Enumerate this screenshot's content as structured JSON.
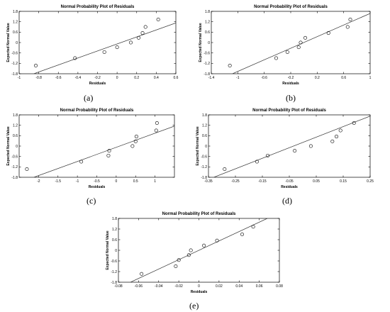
{
  "figure": {
    "captions": [
      "(a)",
      "(b)",
      "(c)",
      "(d)",
      "(e)"
    ]
  },
  "chart_data": [
    {
      "type": "scatter",
      "title": "Normal Probability Plot of Residuals",
      "xlabel": "Residuals",
      "ylabel": "Expected Normal Value",
      "xlim": [
        -1.0,
        0.6
      ],
      "ylim": [
        -1.8,
        1.8
      ],
      "xticks": [
        -1.0,
        -0.8,
        -0.6,
        -0.4,
        -0.2,
        0.0,
        0.2,
        0.4,
        0.6
      ],
      "xtick_labels": [
        "-1",
        "-0.8",
        "-0.6",
        "-0.4",
        "-0.2",
        "0",
        "0.2",
        "0.4",
        "0.6"
      ],
      "yticks": [
        -1.8,
        -1.2,
        -0.6,
        0.0,
        0.6,
        1.2,
        1.8
      ],
      "ytick_labels": [
        "-1.8",
        "-1.2",
        "-0.6",
        "0",
        "0.6",
        "1.2",
        "1.8"
      ],
      "grid": false,
      "points": [
        {
          "x": -0.83,
          "y": -1.33
        },
        {
          "x": -0.43,
          "y": -0.9
        },
        {
          "x": -0.13,
          "y": -0.55
        },
        {
          "x": 0.0,
          "y": -0.27
        },
        {
          "x": 0.14,
          "y": 0.0
        },
        {
          "x": 0.22,
          "y": 0.27
        },
        {
          "x": 0.26,
          "y": 0.55
        },
        {
          "x": 0.29,
          "y": 0.9
        },
        {
          "x": 0.42,
          "y": 1.33
        }
      ],
      "fit_line": [
        {
          "x": -0.85,
          "y": -1.8
        },
        {
          "x": 0.6,
          "y": 1.13
        }
      ]
    },
    {
      "type": "scatter",
      "title": "Normal Probability Plot of Residuals",
      "xlabel": "Residuals",
      "ylabel": "Expected Normal Value",
      "xlim": [
        -1.4,
        1.0
      ],
      "ylim": [
        -1.8,
        1.8
      ],
      "xticks": [
        -1.4,
        -1.0,
        -0.6,
        -0.2,
        0.2,
        0.6,
        1.0
      ],
      "xtick_labels": [
        "-1.4",
        "-1",
        "-0.6",
        "-0.2",
        "0.2",
        "0.6",
        "1"
      ],
      "yticks": [
        -1.8,
        -1.2,
        -0.6,
        0.0,
        0.6,
        1.2,
        1.8
      ],
      "ytick_labels": [
        "-1.8",
        "-1.2",
        "-0.6",
        "0",
        "0.6",
        "1.2",
        "1.8"
      ],
      "grid": false,
      "points": [
        {
          "x": -1.12,
          "y": -1.33
        },
        {
          "x": -0.42,
          "y": -0.9
        },
        {
          "x": -0.25,
          "y": -0.55
        },
        {
          "x": -0.08,
          "y": -0.27
        },
        {
          "x": -0.05,
          "y": 0.0
        },
        {
          "x": 0.02,
          "y": 0.27
        },
        {
          "x": 0.37,
          "y": 0.55
        },
        {
          "x": 0.66,
          "y": 0.9
        },
        {
          "x": 0.7,
          "y": 1.33
        }
      ],
      "fit_line": [
        {
          "x": -1.08,
          "y": -1.8
        },
        {
          "x": 1.0,
          "y": 1.68
        }
      ]
    },
    {
      "type": "scatter",
      "title": "Normal Probability Plot of Residuals",
      "xlabel": "Residuals",
      "ylabel": "Expected Normal Value",
      "xlim": [
        -2.5,
        1.5
      ],
      "ylim": [
        -1.8,
        1.8
      ],
      "xticks": [
        -2.0,
        -1.5,
        -1.0,
        -0.5,
        0.0,
        0.5,
        1.0
      ],
      "xtick_labels": [
        "-2",
        "-1.5",
        "-1",
        "-0.5",
        "0",
        "0.5",
        "1"
      ],
      "yticks": [
        -1.8,
        -1.2,
        -0.6,
        0.0,
        0.6,
        1.2,
        1.8
      ],
      "ytick_labels": [
        "-1.8",
        "-1.2",
        "-0.6",
        "0",
        "0.6",
        "1.2",
        "1.8"
      ],
      "grid": false,
      "points": [
        {
          "x": -2.3,
          "y": -1.33
        },
        {
          "x": -0.9,
          "y": -0.9
        },
        {
          "x": -0.2,
          "y": -0.55
        },
        {
          "x": -0.18,
          "y": -0.27
        },
        {
          "x": 0.42,
          "y": 0.0
        },
        {
          "x": 0.5,
          "y": 0.27
        },
        {
          "x": 0.52,
          "y": 0.55
        },
        {
          "x": 1.03,
          "y": 0.9
        },
        {
          "x": 1.05,
          "y": 1.33
        }
      ],
      "fit_line": [
        {
          "x": -2.12,
          "y": -1.8
        },
        {
          "x": 1.5,
          "y": 1.15
        }
      ]
    },
    {
      "type": "scatter",
      "title": "Normal Probability Plot of Residuals",
      "xlabel": "Residuals",
      "ylabel": "Expected Normal Value",
      "xlim": [
        -0.35,
        0.25
      ],
      "ylim": [
        -1.8,
        1.8
      ],
      "xticks": [
        -0.35,
        -0.25,
        -0.15,
        -0.05,
        0.05,
        0.15,
        0.25
      ],
      "xtick_labels": [
        "-0.35",
        "-0.25",
        "-0.15",
        "-0.05",
        "0.05",
        "0.15",
        "0.25"
      ],
      "yticks": [
        -1.8,
        -1.2,
        -0.6,
        0.0,
        0.6,
        1.2,
        1.8
      ],
      "ytick_labels": [
        "-1.8",
        "-1.2",
        "-0.6",
        "0",
        "0.6",
        "1.2",
        "1.8"
      ],
      "grid": false,
      "points": [
        {
          "x": -0.29,
          "y": -1.33
        },
        {
          "x": -0.17,
          "y": -0.9
        },
        {
          "x": -0.13,
          "y": -0.55
        },
        {
          "x": -0.03,
          "y": -0.27
        },
        {
          "x": 0.03,
          "y": 0.0
        },
        {
          "x": 0.11,
          "y": 0.27
        },
        {
          "x": 0.125,
          "y": 0.55
        },
        {
          "x": 0.14,
          "y": 0.9
        },
        {
          "x": 0.19,
          "y": 1.33
        }
      ],
      "fit_line": [
        {
          "x": -0.33,
          "y": -1.8
        },
        {
          "x": 0.25,
          "y": 1.73
        }
      ]
    },
    {
      "type": "scatter",
      "title": "Normal Probability Plot of Residuals",
      "xlabel": "Residuals",
      "ylabel": "Expected Normal Value",
      "xlim": [
        -0.08,
        0.08
      ],
      "ylim": [
        -1.8,
        1.8
      ],
      "xticks": [
        -0.08,
        -0.06,
        -0.04,
        -0.02,
        0.0,
        0.02,
        0.04,
        0.06,
        0.08
      ],
      "xtick_labels": [
        "-0.08",
        "-0.06",
        "-0.04",
        "-0.02",
        "0",
        "0.02",
        "0.04",
        "0.06",
        "0.08"
      ],
      "yticks": [
        -1.8,
        -1.2,
        -0.6,
        0.0,
        0.6,
        1.2,
        1.8
      ],
      "ytick_labels": [
        "-1.8",
        "-1.2",
        "-0.6",
        "0",
        "0.6",
        "1.2",
        "1.8"
      ],
      "grid": false,
      "points": [
        {
          "x": -0.057,
          "y": -1.33
        },
        {
          "x": -0.023,
          "y": -0.9
        },
        {
          "x": -0.02,
          "y": -0.55
        },
        {
          "x": -0.01,
          "y": -0.27
        },
        {
          "x": -0.008,
          "y": 0.0
        },
        {
          "x": 0.005,
          "y": 0.27
        },
        {
          "x": 0.018,
          "y": 0.55
        },
        {
          "x": 0.043,
          "y": 0.9
        },
        {
          "x": 0.054,
          "y": 1.33
        }
      ],
      "fit_line": [
        {
          "x": -0.068,
          "y": -1.8
        },
        {
          "x": 0.068,
          "y": 1.8
        }
      ]
    }
  ]
}
